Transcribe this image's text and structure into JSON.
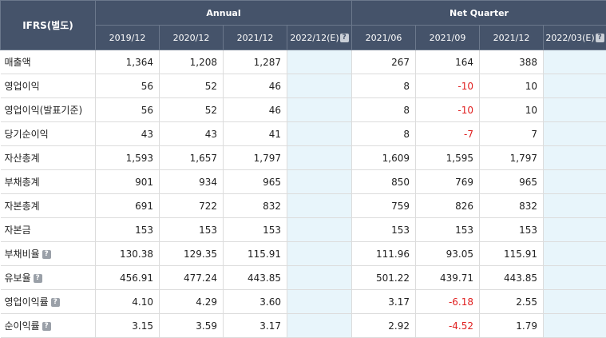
{
  "header": {
    "row_label": "IFRS(별도)",
    "annual_label": "Annual",
    "quarter_label": "Net Quarter",
    "periods": [
      {
        "label": "2019/12",
        "help": false
      },
      {
        "label": "2020/12",
        "help": false
      },
      {
        "label": "2021/12",
        "help": false
      },
      {
        "label": "2022/12(E)",
        "help": true
      },
      {
        "label": "2021/06",
        "help": false
      },
      {
        "label": "2021/09",
        "help": false
      },
      {
        "label": "2021/12",
        "help": false
      },
      {
        "label": "2022/03(E)",
        "help": true
      }
    ]
  },
  "help_glyph": "?",
  "rows": [
    {
      "label": "매출액",
      "help": false,
      "values": [
        "1,364",
        "1,208",
        "1,287",
        "",
        "267",
        "164",
        "388",
        ""
      ]
    },
    {
      "label": "영업이익",
      "help": false,
      "values": [
        "56",
        "52",
        "46",
        "",
        "8",
        "-10",
        "10",
        ""
      ]
    },
    {
      "label": "영업이익(발표기준)",
      "help": false,
      "values": [
        "56",
        "52",
        "46",
        "",
        "8",
        "-10",
        "10",
        ""
      ]
    },
    {
      "label": "당기순이익",
      "help": false,
      "values": [
        "43",
        "43",
        "41",
        "",
        "8",
        "-7",
        "7",
        ""
      ]
    },
    {
      "label": "자산총계",
      "help": false,
      "values": [
        "1,593",
        "1,657",
        "1,797",
        "",
        "1,609",
        "1,595",
        "1,797",
        ""
      ]
    },
    {
      "label": "부채총계",
      "help": false,
      "values": [
        "901",
        "934",
        "965",
        "",
        "850",
        "769",
        "965",
        ""
      ]
    },
    {
      "label": "자본총계",
      "help": false,
      "values": [
        "691",
        "722",
        "832",
        "",
        "759",
        "826",
        "832",
        ""
      ]
    },
    {
      "label": "자본금",
      "help": false,
      "values": [
        "153",
        "153",
        "153",
        "",
        "153",
        "153",
        "153",
        ""
      ]
    },
    {
      "label": "부채비율",
      "help": true,
      "values": [
        "130.38",
        "129.35",
        "115.91",
        "",
        "111.96",
        "93.05",
        "115.91",
        ""
      ]
    },
    {
      "label": "유보율",
      "help": true,
      "values": [
        "456.91",
        "477.24",
        "443.85",
        "",
        "501.22",
        "439.71",
        "443.85",
        ""
      ]
    },
    {
      "label": "영업이익률",
      "help": true,
      "values": [
        "4.10",
        "4.29",
        "3.60",
        "",
        "3.17",
        "-6.18",
        "2.55",
        ""
      ]
    },
    {
      "label": "순이익률",
      "help": true,
      "values": [
        "3.15",
        "3.59",
        "3.17",
        "",
        "2.92",
        "-4.52",
        "1.79",
        ""
      ]
    }
  ],
  "colors": {
    "header_bg": "#45536a",
    "estimate_bg": "#e8f5fb",
    "negative": "#e02020"
  }
}
